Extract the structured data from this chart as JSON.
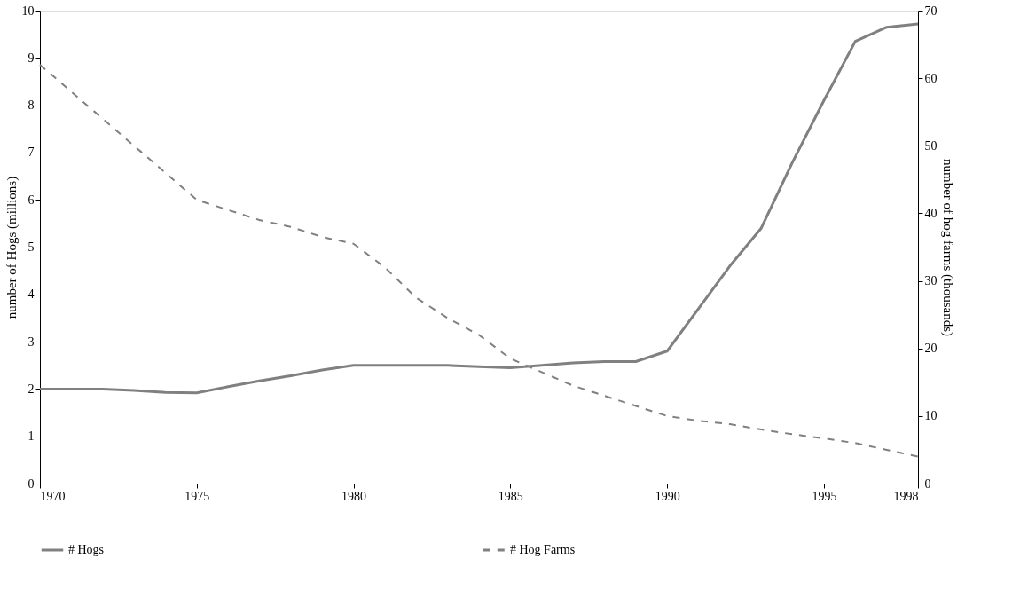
{
  "chart_data": {
    "type": "line",
    "x": [
      1970,
      1971,
      1972,
      1973,
      1974,
      1975,
      1976,
      1977,
      1978,
      1979,
      1980,
      1981,
      1982,
      1983,
      1984,
      1985,
      1986,
      1987,
      1988,
      1989,
      1990,
      1991,
      1992,
      1993,
      1994,
      1995,
      1996,
      1997,
      1998
    ],
    "series": [
      {
        "name": "# Hogs",
        "color": "#808080",
        "line_style": "solid",
        "values": [
          2.0,
          2.0,
          2.0,
          1.97,
          1.93,
          1.92,
          2.05,
          2.17,
          2.28,
          2.4,
          2.5,
          2.5,
          2.5,
          2.5,
          2.47,
          2.45,
          2.5,
          2.55,
          2.58,
          2.58,
          2.8,
          3.7,
          4.6,
          5.4,
          6.8,
          8.1,
          9.35,
          9.65,
          9.72
        ]
      },
      {
        "name": "# Hog Farms",
        "color": "#808080",
        "line_style": "dashed",
        "axis": "y2",
        "values": [
          62,
          58,
          54,
          50,
          46,
          42,
          40.5,
          39,
          38,
          36.5,
          35.5,
          32,
          27.5,
          24.5,
          22,
          18.5,
          16.5,
          14.5,
          13,
          11.5,
          10,
          9.3,
          8.8,
          8,
          7.3,
          6.7,
          6,
          5,
          4
        ]
      }
    ],
    "ylabel": "number of Hogs (millions)",
    "y2label": "number of hog farms (thousands)",
    "xlim": [
      1970,
      1998
    ],
    "xticks": [
      1970,
      1975,
      1980,
      1985,
      1990,
      1995,
      1998
    ],
    "ylim": [
      0,
      10
    ],
    "yticks": [
      0,
      1,
      2,
      3,
      4,
      5,
      6,
      7,
      8,
      9,
      10
    ],
    "y2lim": [
      0,
      70
    ],
    "y2ticks": [
      0,
      10,
      20,
      30,
      40,
      50,
      60,
      70
    ],
    "grid": false,
    "legend": "bottom",
    "marker": "none"
  }
}
